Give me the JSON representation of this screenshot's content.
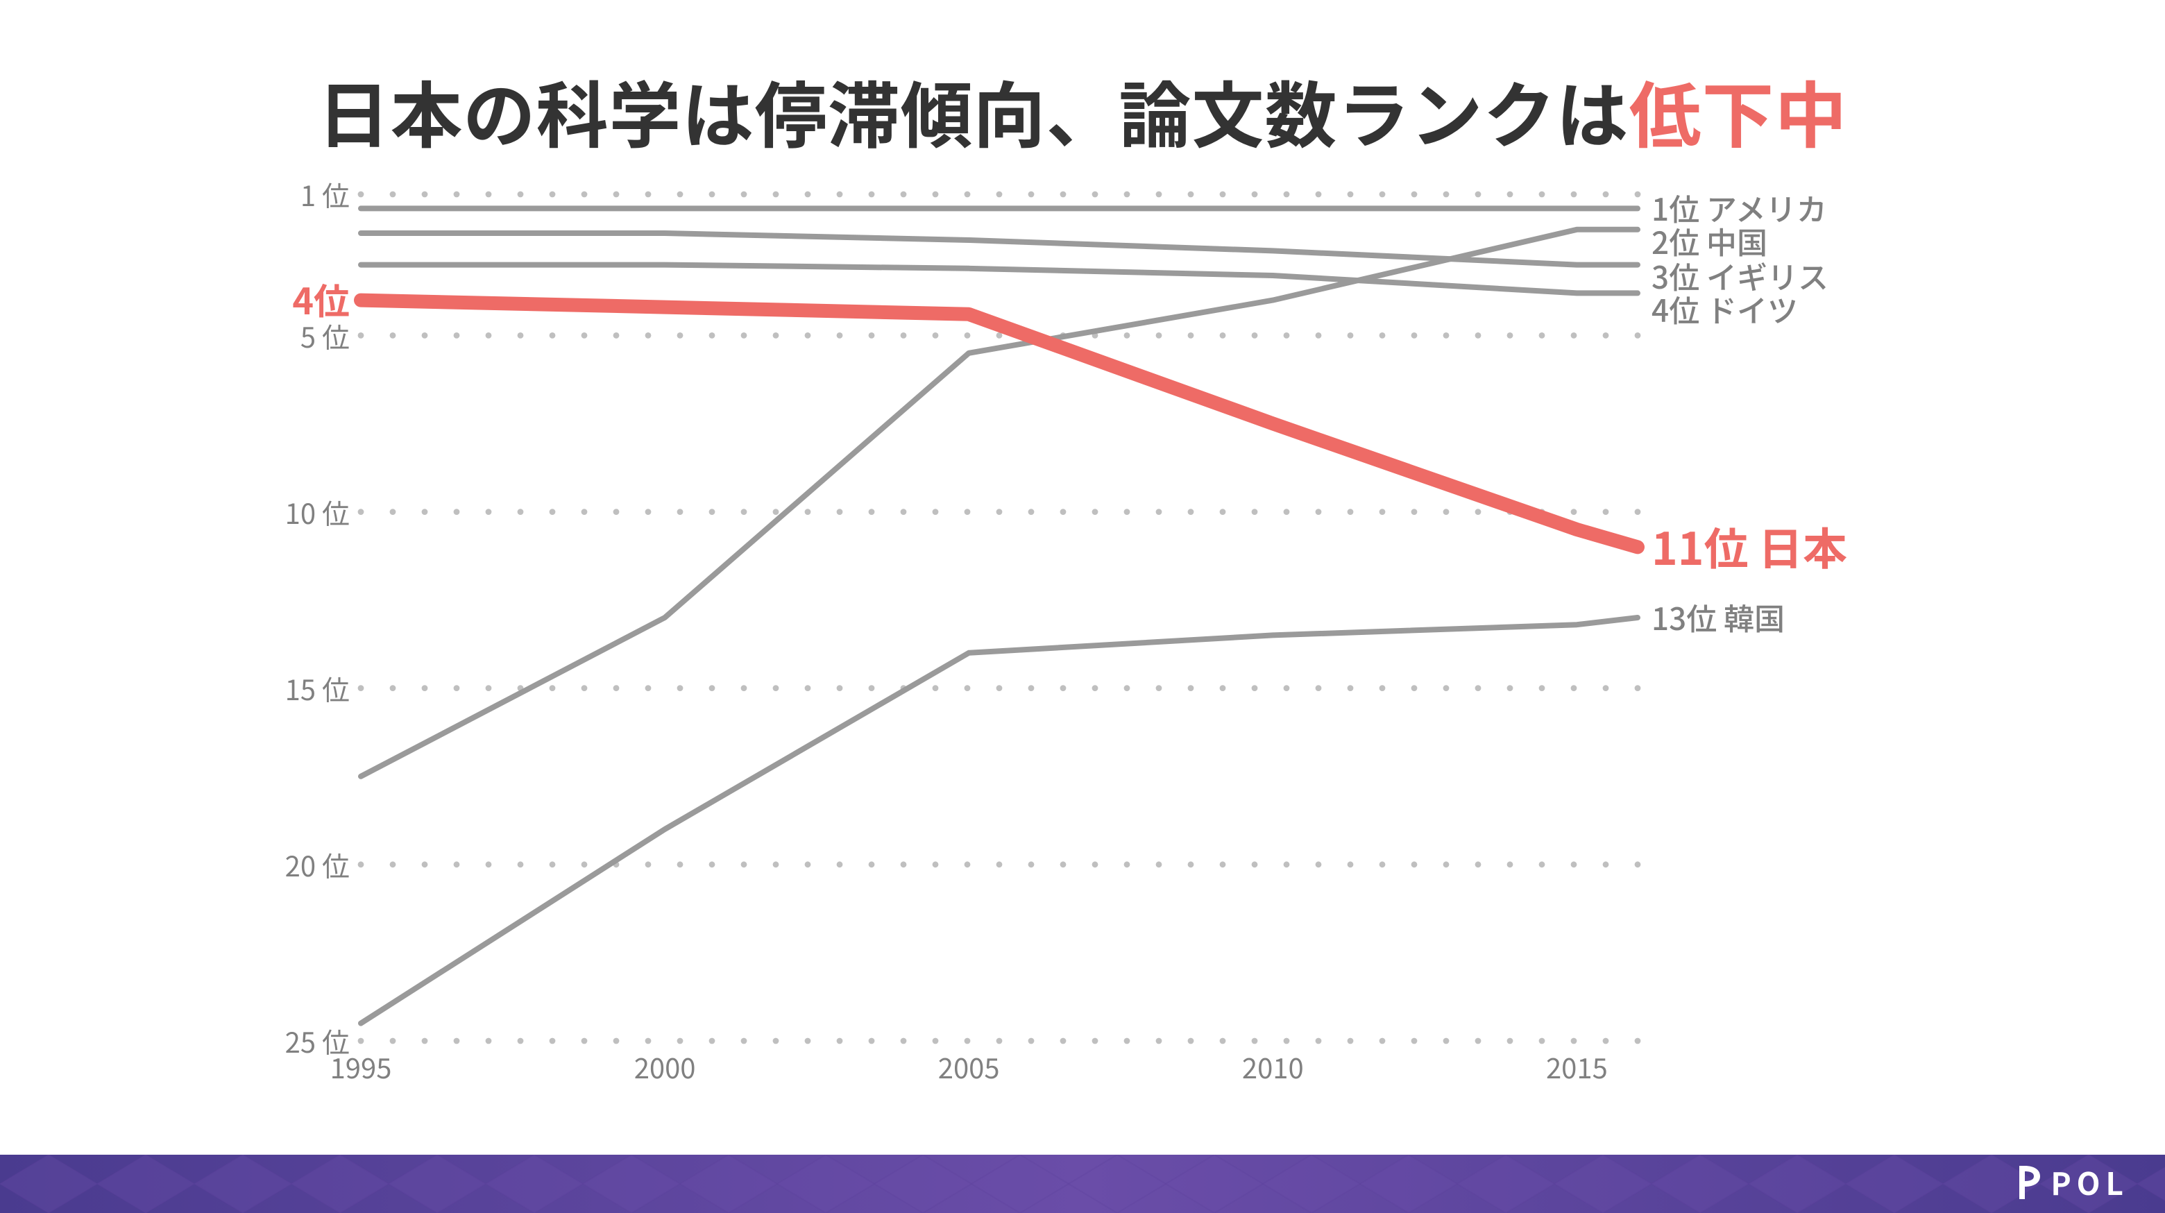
{
  "title": {
    "prefix": "日本の科学は停滞傾向、論文数ランクは",
    "accent": "低下中",
    "color_main": "#333333",
    "color_accent": "#ee6b66",
    "fontsize": 52
  },
  "chart": {
    "type": "line",
    "x_years": [
      1995,
      2000,
      2005,
      2010,
      2015,
      2016
    ],
    "xlim": [
      1995,
      2016
    ],
    "xticks": [
      1995,
      2000,
      2005,
      2010,
      2015
    ],
    "xtick_labels": [
      "1995",
      "2000",
      "2005",
      "2010",
      "2015"
    ],
    "ylim": [
      1,
      25
    ],
    "yticks": [
      1,
      5,
      10,
      15,
      20,
      25
    ],
    "ytick_labels": [
      "1 位",
      "5 位",
      "10 位",
      "15 位",
      "20 位",
      "25 位"
    ],
    "ytick_fontsize": 20,
    "ytick_color": "#808080",
    "xtick_fontsize": 20,
    "xtick_color": "#808080",
    "grid_dot_color": "#bfbfbf",
    "grid_dot_radius": 2.2,
    "grid_x_count": 40,
    "background_color": "#ffffff",
    "series": [
      {
        "name": "アメリカ",
        "values": [
          1.4,
          1.4,
          1.4,
          1.4,
          1.4,
          1.4
        ],
        "color": "#9a9a9a",
        "width": 4,
        "end_label": "1位 アメリカ",
        "end_label_color": "#808080",
        "end_label_fontsize": 22
      },
      {
        "name": "中国",
        "values": [
          17.5,
          13,
          5.5,
          4,
          2.0,
          2.0
        ],
        "color": "#9a9a9a",
        "width": 4,
        "end_label": "2位 中国",
        "end_label_color": "#808080",
        "end_label_fontsize": 22
      },
      {
        "name": "イギリス",
        "values": [
          2.1,
          2.1,
          2.3,
          2.6,
          3.0,
          3.0
        ],
        "color": "#9a9a9a",
        "width": 4,
        "end_label": "3位 イギリス",
        "end_label_color": "#808080",
        "end_label_fontsize": 22
      },
      {
        "name": "ドイツ",
        "values": [
          3.0,
          3.0,
          3.1,
          3.3,
          3.8,
          3.8
        ],
        "color": "#9a9a9a",
        "width": 4,
        "end_label": "4位 ドイツ",
        "end_label_color": "#808080",
        "end_label_fontsize": 22
      },
      {
        "name": "日本",
        "values": [
          4.0,
          4.2,
          4.4,
          7.5,
          10.5,
          11.0
        ],
        "color": "#ee6b66",
        "width": 10,
        "end_label": "11位 日本",
        "end_label_color": "#ee6b66",
        "end_label_fontsize": 32,
        "end_label_weight": 700,
        "start_label": "4位",
        "start_label_color": "#ee6b66",
        "start_label_fontsize": 26
      },
      {
        "name": "韓国",
        "values": [
          24.5,
          19,
          14,
          13.5,
          13.2,
          13.0
        ],
        "color": "#9a9a9a",
        "width": 4,
        "end_label": "13位 韓国",
        "end_label_color": "#808080",
        "end_label_fontsize": 22
      }
    ]
  },
  "footer": {
    "bar_gradient": [
      "#4a3b8f",
      "#6a4da8",
      "#4a3b8f"
    ],
    "diamond_fill": "#6a4da8",
    "diamond_stroke": "#5a3f9a",
    "brand_text": "POL",
    "brand_color": "#ffffff"
  }
}
